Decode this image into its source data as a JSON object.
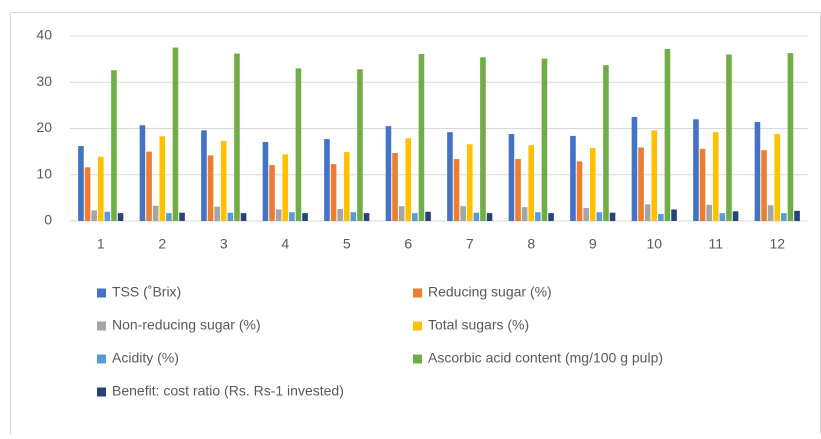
{
  "chart_data": {
    "type": "bar",
    "categories": [
      "1",
      "2",
      "3",
      "4",
      "5",
      "6",
      "7",
      "8",
      "9",
      "10",
      "11",
      "12"
    ],
    "series": [
      {
        "name": "TSS (˚Brix)",
        "color": "#4472c4",
        "values": [
          16.2,
          20.7,
          19.6,
          17.1,
          17.7,
          20.5,
          19.2,
          18.8,
          18.4,
          22.5,
          22.0,
          21.4
        ]
      },
      {
        "name": "Reducing sugar (%)",
        "color": "#ed7d31",
        "values": [
          11.6,
          15.0,
          14.2,
          12.1,
          12.3,
          14.7,
          13.4,
          13.4,
          12.9,
          15.9,
          15.6,
          15.3
        ]
      },
      {
        "name": "Non-reducing sugar (%)",
        "color": "#a5a5a5",
        "values": [
          2.3,
          3.3,
          3.1,
          2.5,
          2.6,
          3.2,
          3.2,
          3.0,
          2.8,
          3.6,
          3.5,
          3.4
        ]
      },
      {
        "name": "Total sugars (%)",
        "color": "#ffc000",
        "values": [
          13.9,
          18.3,
          17.3,
          14.4,
          14.9,
          17.9,
          16.6,
          16.4,
          15.8,
          19.6,
          19.2,
          18.8
        ]
      },
      {
        "name": "Acidity (%)",
        "color": "#5b9bd5",
        "values": [
          2.0,
          1.7,
          1.8,
          1.9,
          1.9,
          1.7,
          1.8,
          1.9,
          1.9,
          1.5,
          1.7,
          1.7
        ]
      },
      {
        "name": "Ascorbic acid content (mg/100 g pulp)",
        "color": "#70ad47",
        "values": [
          32.6,
          37.5,
          36.2,
          33.0,
          32.8,
          36.1,
          35.4,
          35.1,
          33.7,
          37.2,
          36.0,
          36.3
        ]
      },
      {
        "name": "Benefit: cost ratio (Rs. Rs-1 invested)",
        "color": "#264478",
        "values": [
          1.7,
          1.8,
          1.7,
          1.7,
          1.7,
          2.0,
          1.7,
          1.7,
          1.8,
          2.5,
          2.1,
          2.2
        ]
      }
    ],
    "ylim": [
      0,
      40
    ],
    "yticks": [
      0,
      10,
      20,
      30,
      40
    ],
    "grid": true,
    "legend": "bottom"
  }
}
